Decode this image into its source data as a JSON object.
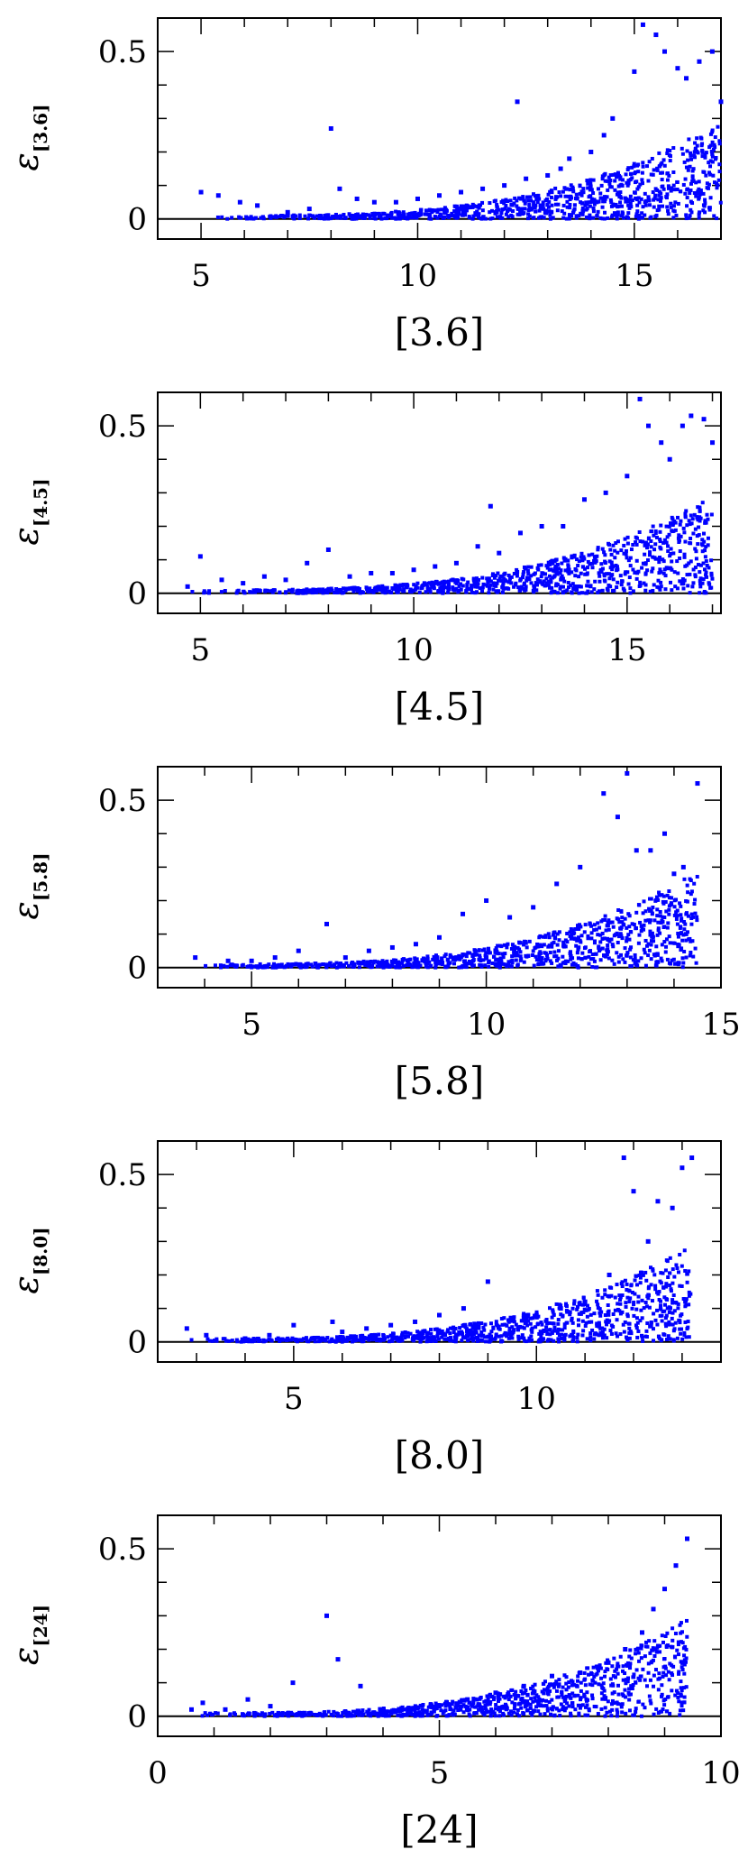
{
  "chart_data": [
    {
      "type": "scatter",
      "xlabel": "[3.6]",
      "ylabel": "ε",
      "ylabel_subscript": "[3.6]",
      "xlim": [
        4,
        17
      ],
      "ylim": [
        -0.06,
        0.6
      ],
      "xticks": [
        "5",
        "10",
        "15"
      ],
      "yticks": [
        "0",
        "0.5"
      ],
      "color": "#0000ff",
      "series": [
        {
          "x": [
            5.0,
            5.4,
            5.9,
            6.3,
            7.0,
            7.5,
            8.0,
            8.2,
            8.6,
            9.0,
            9.5,
            10.0,
            10.5,
            11.0,
            11.5,
            12.0,
            12.3,
            12.5,
            13.0,
            13.3,
            13.5,
            14.0,
            14.3,
            14.5,
            15.0,
            15.2,
            15.5,
            15.7,
            16.0,
            16.2,
            16.5,
            16.8,
            17.0
          ],
          "y": [
            0.08,
            0.07,
            0.05,
            0.04,
            0.02,
            0.03,
            0.27,
            0.09,
            0.06,
            0.05,
            0.05,
            0.06,
            0.07,
            0.08,
            0.09,
            0.1,
            0.35,
            0.12,
            0.13,
            0.15,
            0.18,
            0.2,
            0.25,
            0.3,
            0.44,
            0.58,
            0.55,
            0.5,
            0.45,
            0.42,
            0.47,
            0.5,
            0.35
          ]
        }
      ]
    },
    {
      "type": "scatter",
      "xlabel": "[4.5]",
      "ylabel": "ε",
      "ylabel_subscript": "[4.5]",
      "xlim": [
        4,
        17.2
      ],
      "ylim": [
        -0.06,
        0.6
      ],
      "xticks": [
        "5",
        "10",
        "15"
      ],
      "yticks": [
        "0",
        "0.5"
      ],
      "color": "#0000ff",
      "series": [
        {
          "x": [
            4.7,
            5.0,
            5.5,
            6.0,
            6.5,
            7.0,
            7.5,
            8.0,
            8.5,
            9.0,
            9.5,
            10.0,
            10.5,
            11.0,
            11.5,
            11.8,
            12.0,
            12.5,
            13.0,
            13.5,
            14.0,
            14.5,
            15.0,
            15.3,
            15.5,
            15.8,
            16.0,
            16.3,
            16.5,
            16.8,
            17.0
          ],
          "y": [
            0.02,
            0.11,
            0.04,
            0.03,
            0.05,
            0.04,
            0.09,
            0.13,
            0.05,
            0.06,
            0.06,
            0.07,
            0.08,
            0.09,
            0.14,
            0.26,
            0.12,
            0.18,
            0.2,
            0.2,
            0.28,
            0.3,
            0.35,
            0.58,
            0.5,
            0.45,
            0.4,
            0.5,
            0.53,
            0.52,
            0.45
          ]
        }
      ]
    },
    {
      "type": "scatter",
      "xlabel": "[5.8]",
      "ylabel": "ε",
      "ylabel_subscript": "[5.8]",
      "xlim": [
        3,
        15
      ],
      "ylim": [
        -0.06,
        0.6
      ],
      "xticks": [
        "5",
        "10",
        "15"
      ],
      "yticks": [
        "0",
        "0.5"
      ],
      "color": "#0000ff",
      "series": [
        {
          "x": [
            3.8,
            4.5,
            5.0,
            5.5,
            6.0,
            6.6,
            7.0,
            7.5,
            8.0,
            8.5,
            9.0,
            9.5,
            10.0,
            10.5,
            11.0,
            11.5,
            12.0,
            12.5,
            12.8,
            13.0,
            13.2,
            13.5,
            13.8,
            14.0,
            14.2,
            14.5
          ],
          "y": [
            0.03,
            0.02,
            0.02,
            0.03,
            0.05,
            0.13,
            0.03,
            0.05,
            0.06,
            0.07,
            0.09,
            0.16,
            0.2,
            0.15,
            0.18,
            0.25,
            0.3,
            0.52,
            0.45,
            0.58,
            0.35,
            0.35,
            0.4,
            0.28,
            0.3,
            0.55
          ]
        }
      ]
    },
    {
      "type": "scatter",
      "xlabel": "[8.0]",
      "ylabel": "ε",
      "ylabel_subscript": "[8.0]",
      "xlim": [
        2.2,
        13.8
      ],
      "ylim": [
        -0.06,
        0.6
      ],
      "xticks": [
        "5",
        "10"
      ],
      "yticks": [
        "0",
        "0.5"
      ],
      "color": "#0000ff",
      "series": [
        {
          "x": [
            2.8,
            3.2,
            4.0,
            4.5,
            5.0,
            5.8,
            6.0,
            6.5,
            7.0,
            7.5,
            8.0,
            8.5,
            9.0,
            9.5,
            10.0,
            10.5,
            11.0,
            11.5,
            11.8,
            12.0,
            12.3,
            12.5,
            12.8,
            13.0,
            13.2
          ],
          "y": [
            0.04,
            0.02,
            0.01,
            0.02,
            0.05,
            0.06,
            0.03,
            0.04,
            0.05,
            0.06,
            0.08,
            0.1,
            0.18,
            0.07,
            0.08,
            0.1,
            0.12,
            0.2,
            0.55,
            0.45,
            0.3,
            0.42,
            0.4,
            0.52,
            0.55
          ]
        }
      ]
    },
    {
      "type": "scatter",
      "xlabel": "[24]",
      "ylabel": "ε",
      "ylabel_subscript": "[24]",
      "xlim": [
        0,
        10
      ],
      "ylim": [
        -0.06,
        0.6
      ],
      "xticks": [
        "0",
        "5",
        "10"
      ],
      "yticks": [
        "0",
        "0.5"
      ],
      "color": "#0000ff",
      "series": [
        {
          "x": [
            0.6,
            0.8,
            1.2,
            1.6,
            2.0,
            2.4,
            3.0,
            3.2,
            3.6,
            4.0,
            4.5,
            5.0,
            5.5,
            6.0,
            6.5,
            7.0,
            7.5,
            8.0,
            8.3,
            8.6,
            8.8,
            9.0,
            9.2,
            9.4
          ],
          "y": [
            0.02,
            0.04,
            0.02,
            0.05,
            0.03,
            0.1,
            0.3,
            0.17,
            0.09,
            0.01,
            0.02,
            0.03,
            0.05,
            0.07,
            0.09,
            0.12,
            0.13,
            0.16,
            0.2,
            0.25,
            0.32,
            0.38,
            0.45,
            0.53
          ]
        }
      ]
    }
  ]
}
